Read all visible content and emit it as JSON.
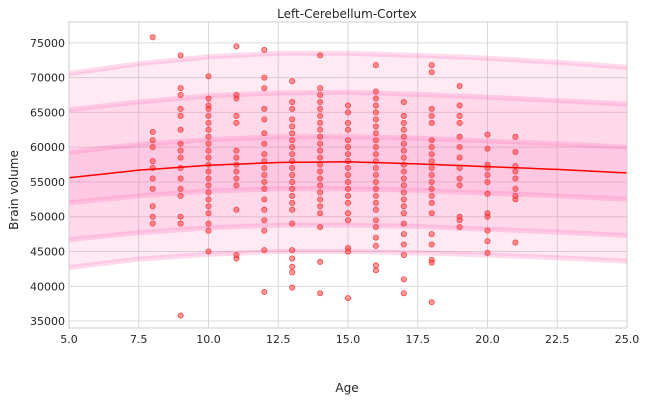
{
  "chart_data": {
    "type": "scatter",
    "title": "Left-Cerebellum-Cortex",
    "xlabel": "Age",
    "ylabel": "Brain volume",
    "xlim": [
      5,
      25
    ],
    "ylim": [
      34000,
      78000
    ],
    "xticks": [
      5.0,
      7.5,
      10.0,
      12.5,
      15.0,
      17.5,
      20.0,
      22.5,
      25.0
    ],
    "xtick_labels": [
      "5.0",
      "7.5",
      "10.0",
      "12.5",
      "15.0",
      "17.5",
      "20.0",
      "22.5",
      "25.0"
    ],
    "yticks": [
      35000,
      40000,
      45000,
      50000,
      55000,
      60000,
      65000,
      70000,
      75000
    ],
    "ytick_labels": [
      "35000",
      "40000",
      "45000",
      "50000",
      "55000",
      "60000",
      "65000",
      "70000",
      "75000"
    ],
    "grid": true,
    "colors": {
      "points": "#ff3333",
      "mean_line": "#ff0000",
      "band": "#ff69b4",
      "grid": "#d9d9d9",
      "frame": "#cccccc"
    },
    "mean_curve": {
      "x": [
        5,
        7.5,
        10,
        12.5,
        15,
        17.5,
        20,
        22.5,
        25
      ],
      "y": [
        55600,
        56700,
        57400,
        57800,
        57900,
        57600,
        57200,
        56800,
        56300
      ]
    },
    "centile_bands": [
      {
        "level": "outer",
        "x": [
          5,
          7.5,
          10,
          12.5,
          15,
          17.5,
          20,
          22.5,
          25
        ],
        "lower": [
          42700,
          43900,
          44600,
          45000,
          45000,
          44800,
          44500,
          44100,
          43600
        ],
        "upper": [
          70600,
          72000,
          73000,
          73500,
          73500,
          73200,
          72800,
          72200,
          71500
        ]
      },
      {
        "level": "middle",
        "x": [
          5,
          7.5,
          10,
          12.5,
          15,
          17.5,
          20,
          22.5,
          25
        ],
        "lower": [
          46700,
          47700,
          48400,
          48800,
          48800,
          48600,
          48200,
          47800,
          47300
        ],
        "upper": [
          65400,
          66500,
          67400,
          67800,
          67900,
          67600,
          67200,
          66700,
          66200
        ]
      },
      {
        "level": "inner",
        "x": [
          5,
          7.5,
          10,
          12.5,
          15,
          17.5,
          20,
          22.5,
          25
        ],
        "lower": [
          52000,
          53000,
          53700,
          54000,
          54000,
          53800,
          53400,
          53000,
          52500
        ],
        "upper": [
          59300,
          60400,
          61100,
          61500,
          61500,
          61300,
          60900,
          60500,
          60000
        ]
      }
    ],
    "points": [
      [
        8,
        75800
      ],
      [
        8,
        62200
      ],
      [
        8,
        61000
      ],
      [
        8,
        60000
      ],
      [
        8,
        58000
      ],
      [
        8,
        57000
      ],
      [
        8,
        55500
      ],
      [
        8,
        54000
      ],
      [
        8,
        51500
      ],
      [
        8,
        50000
      ],
      [
        8,
        49000
      ],
      [
        9,
        73200
      ],
      [
        9,
        68500
      ],
      [
        9,
        67500
      ],
      [
        9,
        65500
      ],
      [
        9,
        64500
      ],
      [
        9,
        62500
      ],
      [
        9,
        60500
      ],
      [
        9,
        59500
      ],
      [
        9,
        58500
      ],
      [
        9,
        57000
      ],
      [
        9,
        55500
      ],
      [
        9,
        54000
      ],
      [
        9,
        53000
      ],
      [
        9,
        50000
      ],
      [
        9,
        49000
      ],
      [
        9,
        35800
      ],
      [
        10,
        70200
      ],
      [
        10,
        67000
      ],
      [
        10,
        66000
      ],
      [
        10,
        65500
      ],
      [
        10,
        64500
      ],
      [
        10,
        63500
      ],
      [
        10,
        62500
      ],
      [
        10,
        61500
      ],
      [
        10,
        60500
      ],
      [
        10,
        59500
      ],
      [
        10,
        58500
      ],
      [
        10,
        57500
      ],
      [
        10,
        56500
      ],
      [
        10,
        55500
      ],
      [
        10,
        54500
      ],
      [
        10,
        53500
      ],
      [
        10,
        52500
      ],
      [
        10,
        51500
      ],
      [
        10,
        50500
      ],
      [
        10,
        49000
      ],
      [
        10,
        48000
      ],
      [
        10,
        45000
      ],
      [
        11,
        74500
      ],
      [
        11,
        67500
      ],
      [
        11,
        67000
      ],
      [
        11,
        64500
      ],
      [
        11,
        63500
      ],
      [
        11,
        59500
      ],
      [
        11,
        58500
      ],
      [
        11,
        57500
      ],
      [
        11,
        56500
      ],
      [
        11,
        55500
      ],
      [
        11,
        54500
      ],
      [
        11,
        51000
      ],
      [
        11,
        44500
      ],
      [
        11,
        44000
      ],
      [
        12,
        74000
      ],
      [
        12,
        70000
      ],
      [
        12,
        68500
      ],
      [
        12,
        65500
      ],
      [
        12,
        64000
      ],
      [
        12,
        62000
      ],
      [
        12,
        60500
      ],
      [
        12,
        59000
      ],
      [
        12,
        58000
      ],
      [
        12,
        57000
      ],
      [
        12,
        56000
      ],
      [
        12,
        55000
      ],
      [
        12,
        54000
      ],
      [
        12,
        52500
      ],
      [
        12,
        51000
      ],
      [
        12,
        49500
      ],
      [
        12,
        48000
      ],
      [
        12,
        45200
      ],
      [
        12,
        39200
      ],
      [
        13,
        69500
      ],
      [
        13,
        66500
      ],
      [
        13,
        65500
      ],
      [
        13,
        64000
      ],
      [
        13,
        63000
      ],
      [
        13,
        62000
      ],
      [
        13,
        61000
      ],
      [
        13,
        60000
      ],
      [
        13,
        59000
      ],
      [
        13,
        58000
      ],
      [
        13,
        57000
      ],
      [
        13,
        56000
      ],
      [
        13,
        55000
      ],
      [
        13,
        54000
      ],
      [
        13,
        53000
      ],
      [
        13,
        52000
      ],
      [
        13,
        51000
      ],
      [
        13,
        49000
      ],
      [
        13,
        45200
      ],
      [
        13,
        44000
      ],
      [
        13,
        42800
      ],
      [
        13,
        42000
      ],
      [
        13,
        39800
      ],
      [
        14,
        73200
      ],
      [
        14,
        68500
      ],
      [
        14,
        67500
      ],
      [
        14,
        66500
      ],
      [
        14,
        65500
      ],
      [
        14,
        64500
      ],
      [
        14,
        63500
      ],
      [
        14,
        62500
      ],
      [
        14,
        61500
      ],
      [
        14,
        60500
      ],
      [
        14,
        59500
      ],
      [
        14,
        58500
      ],
      [
        14,
        57500
      ],
      [
        14,
        56500
      ],
      [
        14,
        55500
      ],
      [
        14,
        54500
      ],
      [
        14,
        53500
      ],
      [
        14,
        52500
      ],
      [
        14,
        51500
      ],
      [
        14,
        50500
      ],
      [
        14,
        48500
      ],
      [
        14,
        43500
      ],
      [
        14,
        39000
      ],
      [
        15,
        66000
      ],
      [
        15,
        65000
      ],
      [
        15,
        63500
      ],
      [
        15,
        62500
      ],
      [
        15,
        61000
      ],
      [
        15,
        60000
      ],
      [
        15,
        59000
      ],
      [
        15,
        58000
      ],
      [
        15,
        57000
      ],
      [
        15,
        56000
      ],
      [
        15,
        55000
      ],
      [
        15,
        54000
      ],
      [
        15,
        53000
      ],
      [
        15,
        52000
      ],
      [
        15,
        50500
      ],
      [
        15,
        49500
      ],
      [
        15,
        45500
      ],
      [
        15,
        45000
      ],
      [
        15,
        38300
      ],
      [
        16,
        71800
      ],
      [
        16,
        68000
      ],
      [
        16,
        67000
      ],
      [
        16,
        66000
      ],
      [
        16,
        65000
      ],
      [
        16,
        64000
      ],
      [
        16,
        63000
      ],
      [
        16,
        62000
      ],
      [
        16,
        61000
      ],
      [
        16,
        60000
      ],
      [
        16,
        59000
      ],
      [
        16,
        58000
      ],
      [
        16,
        57000
      ],
      [
        16,
        56000
      ],
      [
        16,
        55000
      ],
      [
        16,
        54000
      ],
      [
        16,
        53000
      ],
      [
        16,
        52000
      ],
      [
        16,
        51000
      ],
      [
        16,
        49500
      ],
      [
        16,
        48500
      ],
      [
        16,
        47000
      ],
      [
        16,
        45800
      ],
      [
        16,
        43000
      ],
      [
        16,
        42300
      ],
      [
        17,
        66500
      ],
      [
        17,
        64500
      ],
      [
        17,
        63500
      ],
      [
        17,
        62500
      ],
      [
        17,
        61500
      ],
      [
        17,
        60500
      ],
      [
        17,
        59500
      ],
      [
        17,
        58500
      ],
      [
        17,
        57500
      ],
      [
        17,
        56500
      ],
      [
        17,
        55500
      ],
      [
        17,
        54500
      ],
      [
        17,
        53500
      ],
      [
        17,
        52500
      ],
      [
        17,
        51500
      ],
      [
        17,
        50500
      ],
      [
        17,
        49000
      ],
      [
        17,
        47500
      ],
      [
        17,
        46000
      ],
      [
        17,
        44500
      ],
      [
        17,
        41000
      ],
      [
        17,
        39000
      ],
      [
        18,
        71800
      ],
      [
        18,
        70800
      ],
      [
        18,
        65500
      ],
      [
        18,
        64500
      ],
      [
        18,
        63500
      ],
      [
        18,
        61000
      ],
      [
        18,
        60000
      ],
      [
        18,
        59000
      ],
      [
        18,
        58000
      ],
      [
        18,
        57000
      ],
      [
        18,
        56000
      ],
      [
        18,
        55000
      ],
      [
        18,
        54000
      ],
      [
        18,
        53000
      ],
      [
        18,
        52000
      ],
      [
        18,
        50500
      ],
      [
        18,
        47500
      ],
      [
        18,
        46000
      ],
      [
        18,
        43800
      ],
      [
        18,
        43400
      ],
      [
        18,
        37700
      ],
      [
        19,
        68800
      ],
      [
        19,
        66000
      ],
      [
        19,
        64500
      ],
      [
        19,
        63500
      ],
      [
        19,
        61500
      ],
      [
        19,
        60000
      ],
      [
        19,
        58500
      ],
      [
        19,
        57000
      ],
      [
        19,
        55500
      ],
      [
        19,
        54500
      ],
      [
        19,
        50000
      ],
      [
        19,
        49500
      ],
      [
        19,
        48500
      ],
      [
        20,
        61800
      ],
      [
        20,
        59800
      ],
      [
        20,
        57500
      ],
      [
        20,
        57000
      ],
      [
        20,
        56000
      ],
      [
        20,
        55000
      ],
      [
        20,
        53300
      ],
      [
        20,
        50500
      ],
      [
        20,
        50000
      ],
      [
        20,
        48000
      ],
      [
        20,
        46500
      ],
      [
        20,
        44800
      ],
      [
        21,
        61500
      ],
      [
        21,
        59300
      ],
      [
        21,
        57300
      ],
      [
        21,
        56500
      ],
      [
        21,
        55500
      ],
      [
        21,
        54000
      ],
      [
        21,
        53000
      ],
      [
        21,
        52500
      ],
      [
        21,
        46300
      ]
    ]
  }
}
